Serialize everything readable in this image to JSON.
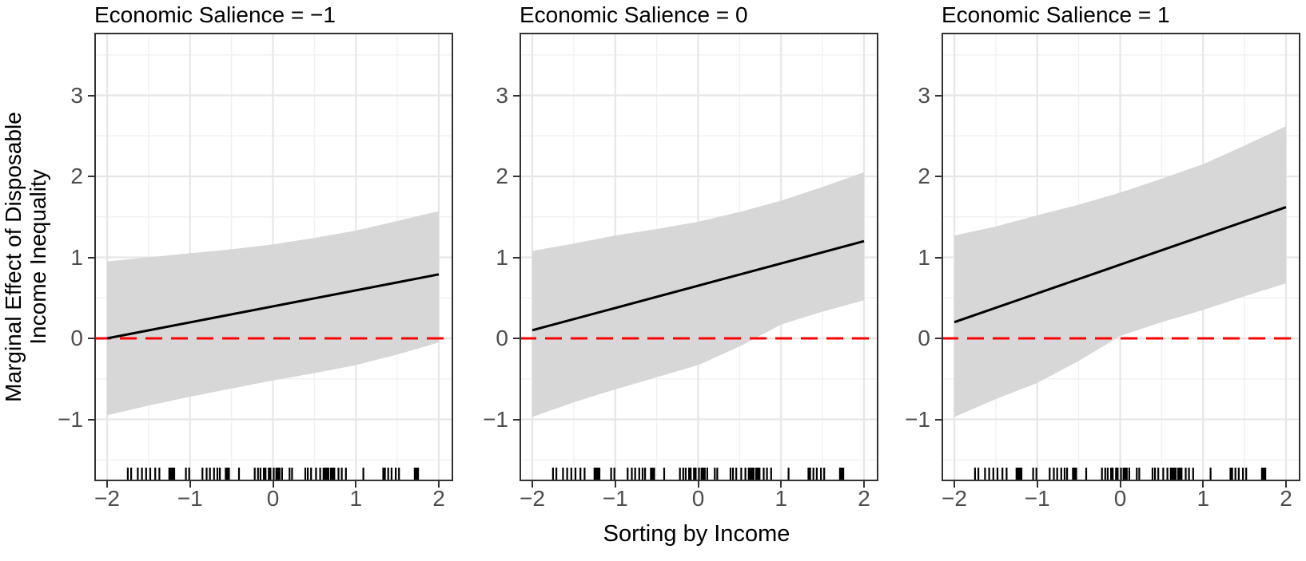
{
  "figure": {
    "x_axis_title": "Sorting by Income",
    "y_axis_title_line1": "Marginal Effect of Disposable",
    "y_axis_title_line2": "Income Inequality"
  },
  "chart_data": {
    "type": "line",
    "title": "",
    "xlabel": "Sorting by Income",
    "ylabel": "Marginal Effect of Disposable Income Inequality",
    "x_domain": [
      -2.17,
      2.17
    ],
    "y_domain": [
      -1.76,
      3.78
    ],
    "grid": "on",
    "legend": "none",
    "x_ticks": [
      "−2",
      "−1",
      "0",
      "1",
      "2"
    ],
    "x_tick_values": [
      -2,
      -1,
      0,
      1,
      2
    ],
    "y_ticks": [
      "3",
      "2",
      "1",
      "0",
      "−1"
    ],
    "y_tick_values": [
      3,
      2,
      1,
      0,
      -1
    ],
    "x_minor_values": [
      -1.5,
      -0.5,
      0.5,
      1.5
    ],
    "y_minor_values": [
      -1.5,
      -0.5,
      0.5,
      1.5,
      2.5,
      3.5
    ],
    "reference_line_y": 0,
    "facets": [
      {
        "title": "Economic Salience = −1",
        "line": [
          [
            -2,
            0.0
          ],
          [
            2,
            0.79
          ]
        ],
        "band_upper": [
          [
            -2,
            0.95
          ],
          [
            -1.5,
            1.0
          ],
          [
            -1,
            1.05
          ],
          [
            -0.5,
            1.1
          ],
          [
            0,
            1.16
          ],
          [
            0.5,
            1.24
          ],
          [
            1,
            1.33
          ],
          [
            1.5,
            1.45
          ],
          [
            2,
            1.57
          ]
        ],
        "band_lower": [
          [
            -2,
            -0.95
          ],
          [
            -1.5,
            -0.83
          ],
          [
            -1,
            -0.72
          ],
          [
            -0.5,
            -0.62
          ],
          [
            0,
            -0.52
          ],
          [
            0.5,
            -0.43
          ],
          [
            1,
            -0.33
          ],
          [
            1.5,
            -0.2
          ],
          [
            2,
            -0.05
          ]
        ]
      },
      {
        "title": "Economic Salience = 0",
        "line": [
          [
            -2,
            0.1
          ],
          [
            2,
            1.2
          ]
        ],
        "band_upper": [
          [
            -2,
            1.08
          ],
          [
            -1.5,
            1.17
          ],
          [
            -1,
            1.27
          ],
          [
            -0.5,
            1.35
          ],
          [
            0,
            1.44
          ],
          [
            0.5,
            1.56
          ],
          [
            1,
            1.7
          ],
          [
            1.5,
            1.87
          ],
          [
            2,
            2.05
          ]
        ],
        "band_lower": [
          [
            -2,
            -0.97
          ],
          [
            -1.5,
            -0.79
          ],
          [
            -1,
            -0.63
          ],
          [
            -0.5,
            -0.48
          ],
          [
            0,
            -0.33
          ],
          [
            0.5,
            -0.1
          ],
          [
            1,
            0.17
          ],
          [
            1.5,
            0.33
          ],
          [
            2,
            0.47
          ]
        ]
      },
      {
        "title": "Economic Salience = 1",
        "line": [
          [
            -2,
            0.2
          ],
          [
            2,
            1.62
          ]
        ],
        "band_upper": [
          [
            -2,
            1.27
          ],
          [
            -1.5,
            1.38
          ],
          [
            -1,
            1.52
          ],
          [
            -0.5,
            1.65
          ],
          [
            0,
            1.8
          ],
          [
            0.5,
            1.97
          ],
          [
            1,
            2.15
          ],
          [
            1.5,
            2.38
          ],
          [
            2,
            2.62
          ]
        ],
        "band_lower": [
          [
            -2,
            -0.97
          ],
          [
            -1.5,
            -0.75
          ],
          [
            -1,
            -0.55
          ],
          [
            -0.5,
            -0.28
          ],
          [
            0,
            0.03
          ],
          [
            0.5,
            0.2
          ],
          [
            1,
            0.35
          ],
          [
            1.5,
            0.52
          ],
          [
            2,
            0.68
          ]
        ]
      }
    ],
    "rug_x": [
      -1.75,
      -1.71,
      -1.63,
      -1.58,
      -1.53,
      -1.48,
      -1.42,
      -1.37,
      -1.25,
      -1.23,
      -1.21,
      -1.19,
      -1.05,
      -1.01,
      -0.85,
      -0.8,
      -0.76,
      -0.71,
      -0.67,
      -0.64,
      -0.57,
      -0.55,
      -0.53,
      -0.41,
      -0.22,
      -0.18,
      -0.15,
      -0.11,
      -0.09,
      -0.05,
      -0.03,
      0.01,
      0.04,
      0.06,
      0.08,
      0.11,
      0.2,
      0.23,
      0.39,
      0.42,
      0.46,
      0.52,
      0.57,
      0.61,
      0.63,
      0.65,
      0.67,
      0.7,
      0.72,
      0.74,
      0.79,
      0.83,
      0.88,
      1.09,
      1.33,
      1.35,
      1.39,
      1.43,
      1.48,
      1.52,
      1.71,
      1.73,
      1.75
    ],
    "colors": {
      "band": "#d7d7d7",
      "regression_line": "#000000",
      "zero_line": "#ff0000",
      "grid_major": "#e6e6e6",
      "grid_minor": "#f1f1f1",
      "panel_border": "#333333",
      "tick_mark": "#333333",
      "tick_label": "#4d4d4d",
      "rug": "#000000"
    }
  }
}
